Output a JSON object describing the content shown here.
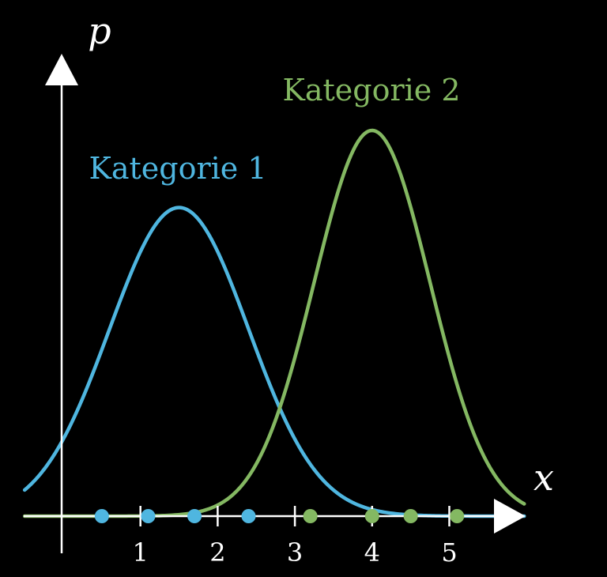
{
  "chart_data": {
    "type": "line",
    "title": "",
    "xlabel": "x",
    "ylabel": "p",
    "xlim": [
      -1,
      6
    ],
    "ylim": [
      0,
      1
    ],
    "x_ticks": [
      "1",
      "2",
      "3",
      "4",
      "5"
    ],
    "grid": false,
    "legend": "inline labels above curves",
    "series": [
      {
        "name": "Kategorie 1",
        "color": "#4fb6e0",
        "distribution": "normal",
        "mean": 1.5,
        "std": 0.9,
        "peak": 0.8,
        "points": [
          0.5,
          1.1,
          1.7,
          2.4
        ]
      },
      {
        "name": "Kategorie 2",
        "color": "#84b862",
        "distribution": "normal",
        "mean": 4.0,
        "std": 0.75,
        "peak": 1.0,
        "points": [
          3.2,
          4.0,
          4.5,
          5.1
        ]
      }
    ]
  }
}
